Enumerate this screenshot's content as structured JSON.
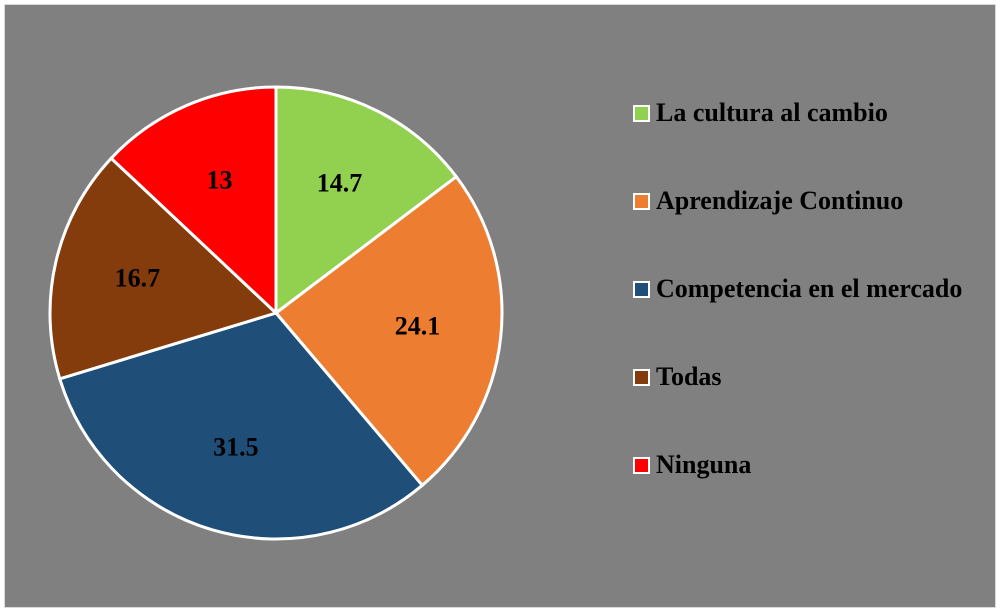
{
  "chart_data": {
    "type": "pie",
    "categories": [
      "La cultura al cambio",
      "Aprendizaje Continuo",
      "Competencia en el mercado",
      "Todas",
      "Ninguna"
    ],
    "values": [
      14.7,
      24.1,
      31.5,
      16.7,
      13
    ],
    "colors": [
      "#92d050",
      "#ed7d31",
      "#1f4e79",
      "#843c0c",
      "#ff0000"
    ],
    "legend": "right"
  }
}
